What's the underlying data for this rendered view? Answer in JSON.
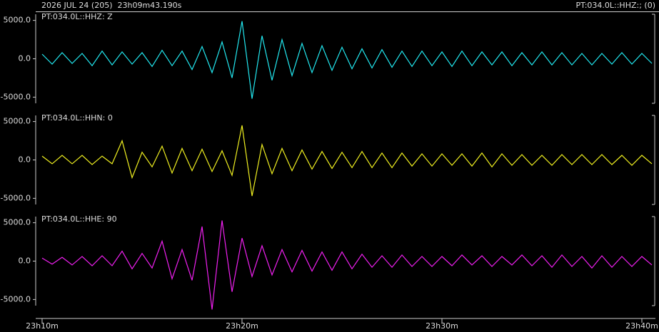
{
  "header": {
    "left": "2026 JUL 24 (205)  23h09m43.190s",
    "right": "PT:034.0L::HHZ:; (0)"
  },
  "x_axis": {
    "xlim": [
      9.68,
      40.5
    ],
    "xticks": [
      {
        "value": 10,
        "label": "23h10m"
      },
      {
        "value": 20,
        "label": "23h20m"
      },
      {
        "value": 30,
        "label": "23h30m"
      },
      {
        "value": 40,
        "label": "23h40m"
      }
    ]
  },
  "chart_data": [
    {
      "type": "line",
      "label": "PT:034.0L::HHZ: Z",
      "color": "#22e8f0",
      "ylim": [
        -5800,
        5800
      ],
      "yticks": [
        {
          "value": 5000,
          "label": "5000.0"
        },
        {
          "value": 0,
          "label": "0.0"
        },
        {
          "value": -5000,
          "label": "-5000.0"
        }
      ],
      "x": [
        10,
        10.5,
        11,
        11.5,
        12,
        12.5,
        13,
        13.5,
        14,
        14.5,
        15,
        15.5,
        16,
        16.5,
        17,
        17.5,
        18,
        18.5,
        19,
        19.5,
        20,
        20.5,
        21,
        21.5,
        22,
        22.5,
        23,
        23.5,
        24,
        24.5,
        25,
        25.5,
        26,
        26.5,
        27,
        27.5,
        28,
        28.5,
        29,
        29.5,
        30,
        30.5,
        31,
        31.5,
        32,
        32.5,
        33,
        33.5,
        34,
        34.5,
        35,
        35.5,
        36,
        36.5,
        37,
        37.5,
        38,
        38.5,
        39,
        39.5,
        40,
        40.5
      ],
      "values": [
        600,
        -700,
        800,
        -600,
        700,
        -900,
        1000,
        -800,
        900,
        -700,
        800,
        -1000,
        1100,
        -900,
        1000,
        -1400,
        1600,
        -1800,
        2200,
        -2500,
        4900,
        -5200,
        3000,
        -2800,
        2500,
        -2200,
        2000,
        -1800,
        1700,
        -1500,
        1500,
        -1300,
        1300,
        -1200,
        1200,
        -1100,
        1000,
        -1000,
        1000,
        -900,
        900,
        -1000,
        1000,
        -900,
        900,
        -800,
        900,
        -900,
        800,
        -800,
        900,
        -800,
        800,
        -800,
        700,
        -800,
        700,
        -700,
        800,
        -700,
        700,
        -600
      ]
    },
    {
      "type": "line",
      "label": "PT:034.0L::HHN: 0",
      "color": "#f0f020",
      "ylim": [
        -5800,
        5800
      ],
      "yticks": [
        {
          "value": 5000,
          "label": "5000.0"
        },
        {
          "value": 0,
          "label": "0.0"
        },
        {
          "value": -5000,
          "label": "-5000.0"
        }
      ],
      "x": [
        10,
        10.5,
        11,
        11.5,
        12,
        12.5,
        13,
        13.5,
        14,
        14.5,
        15,
        15.5,
        16,
        16.5,
        17,
        17.5,
        18,
        18.5,
        19,
        19.5,
        20,
        20.5,
        21,
        21.5,
        22,
        22.5,
        23,
        23.5,
        24,
        24.5,
        25,
        25.5,
        26,
        26.5,
        27,
        27.5,
        28,
        28.5,
        29,
        29.5,
        30,
        30.5,
        31,
        31.5,
        32,
        32.5,
        33,
        33.5,
        34,
        34.5,
        35,
        35.5,
        36,
        36.5,
        37,
        37.5,
        38,
        38.5,
        39,
        39.5,
        40,
        40.5
      ],
      "values": [
        500,
        -500,
        600,
        -500,
        600,
        -600,
        500,
        -500,
        2500,
        -2300,
        1000,
        -900,
        1800,
        -1700,
        1500,
        -1400,
        1400,
        -1500,
        1200,
        -2000,
        4500,
        -4700,
        2000,
        -1800,
        1500,
        -1400,
        1300,
        -1200,
        1100,
        -1100,
        1000,
        -1000,
        1100,
        -1000,
        900,
        -1000,
        900,
        -800,
        800,
        -800,
        800,
        -700,
        800,
        -800,
        900,
        -900,
        800,
        -700,
        700,
        -700,
        600,
        -700,
        700,
        -600,
        700,
        -600,
        700,
        -600,
        600,
        -700,
        600,
        -500
      ]
    },
    {
      "type": "line",
      "label": "PT:034.0L::HHE: 90",
      "color": "#f020f0",
      "ylim": [
        -5800,
        5800
      ],
      "yticks": [
        {
          "value": 5000,
          "label": "5000.0"
        },
        {
          "value": 0,
          "label": "0.0"
        },
        {
          "value": -5000,
          "label": "-5000.0"
        }
      ],
      "x": [
        10,
        10.5,
        11,
        11.5,
        12,
        12.5,
        13,
        13.5,
        14,
        14.5,
        15,
        15.5,
        16,
        16.5,
        17,
        17.5,
        18,
        18.5,
        19,
        19.5,
        20,
        20.5,
        21,
        21.5,
        22,
        22.5,
        23,
        23.5,
        24,
        24.5,
        25,
        25.5,
        26,
        26.5,
        27,
        27.5,
        28,
        28.5,
        29,
        29.5,
        30,
        30.5,
        31,
        31.5,
        32,
        32.5,
        33,
        33.5,
        34,
        34.5,
        35,
        35.5,
        36,
        36.5,
        37,
        37.5,
        38,
        38.5,
        39,
        39.5,
        40,
        40.5
      ],
      "values": [
        400,
        -400,
        500,
        -500,
        600,
        -600,
        700,
        -600,
        1300,
        -1000,
        1000,
        -900,
        2600,
        -2300,
        1500,
        -2500,
        4500,
        -6300,
        5300,
        -4000,
        3000,
        -2000,
        2000,
        -1800,
        1500,
        -1400,
        1400,
        -1300,
        1200,
        -1200,
        1200,
        -1000,
        900,
        -800,
        700,
        -800,
        800,
        -700,
        600,
        -700,
        600,
        -600,
        800,
        -500,
        700,
        -700,
        600,
        -500,
        800,
        -600,
        700,
        -800,
        800,
        -700,
        600,
        -900,
        700,
        -800,
        600,
        -700,
        600,
        -500
      ]
    }
  ]
}
